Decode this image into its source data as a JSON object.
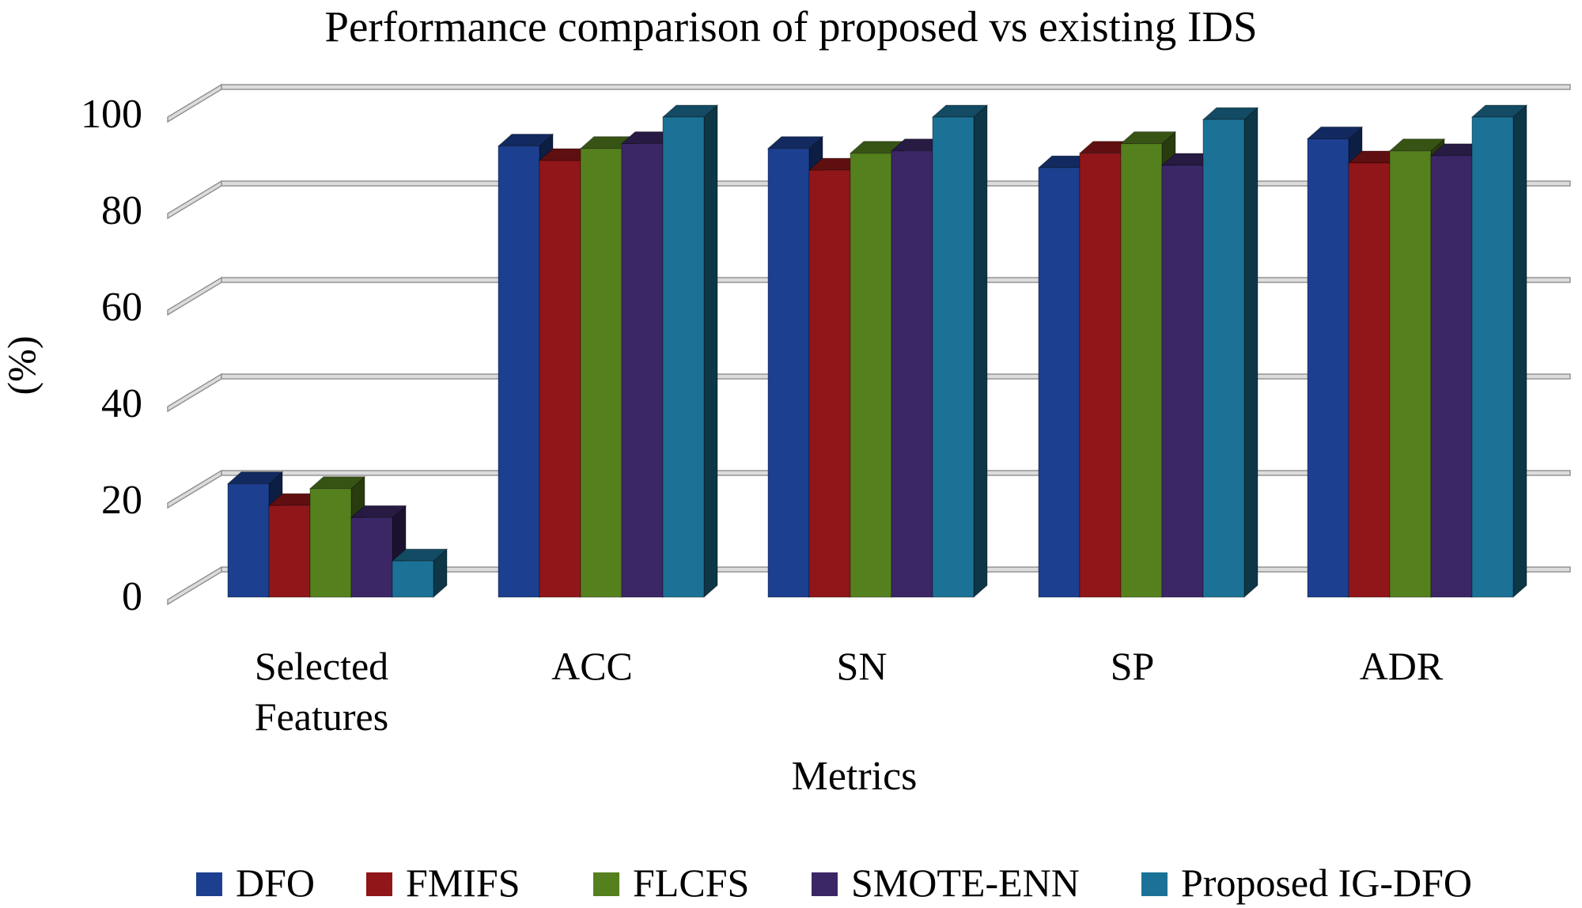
{
  "page": {
    "background": "#ffffff"
  },
  "chart_data": {
    "type": "bar",
    "style": "3d-column-grouped",
    "title": "Performance comparison of proposed vs existing IDS",
    "xlabel": "Metrics",
    "ylabel": "(%)",
    "ylim": [
      0,
      100
    ],
    "yticks": [
      0,
      20,
      40,
      60,
      80,
      100
    ],
    "grid": true,
    "gridline_color": "#8f8f8f",
    "legend_position": "bottom",
    "categories": [
      "Selected\nFeatures",
      "ACC",
      "SN",
      "SP",
      "ADR"
    ],
    "series": [
      {
        "name": "DFO",
        "color": "#1c3f90",
        "values": [
          23.5,
          93.5,
          93.0,
          89.0,
          95.0
        ]
      },
      {
        "name": "FMIFS",
        "color": "#911619",
        "values": [
          19.0,
          90.5,
          88.5,
          92.0,
          90.0
        ]
      },
      {
        "name": "FLCFS",
        "color": "#55801e",
        "values": [
          22.5,
          93.0,
          92.0,
          94.0,
          92.5
        ]
      },
      {
        "name": "SMOTE-ENN",
        "color": "#3b2766",
        "values": [
          16.5,
          94.0,
          92.5,
          89.5,
          91.5
        ]
      },
      {
        "name": "Proposed IG-DFO",
        "color": "#1b7296",
        "values": [
          7.5,
          99.5,
          99.5,
          99.0,
          99.5
        ]
      }
    ]
  }
}
